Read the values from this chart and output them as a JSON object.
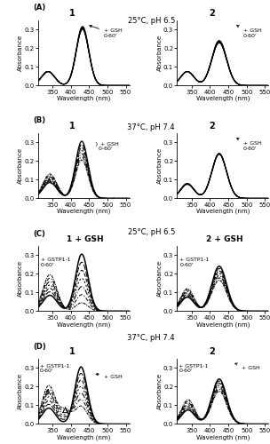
{
  "row_labels": [
    "A",
    "B",
    "C",
    "D"
  ],
  "col_titles_left": [
    "1",
    "1",
    "1 + GSH",
    "1"
  ],
  "col_titles_right": [
    "2",
    "2",
    "2 + GSH",
    "2"
  ],
  "row_supertitles": [
    "25°C, pH 6.5",
    "37°C, pH 7.4",
    "25°C, pH 6.5",
    "37°C, pH 7.4"
  ],
  "xlim": [
    310,
    560
  ],
  "ylim": [
    0.0,
    0.35
  ],
  "yticks": [
    0.0,
    0.1,
    0.2,
    0.3
  ],
  "xticks": [
    350,
    400,
    450,
    500,
    550
  ],
  "xlabel": "Wavelength (nm)",
  "ylabel": "Absorbance",
  "background": "#ffffff"
}
